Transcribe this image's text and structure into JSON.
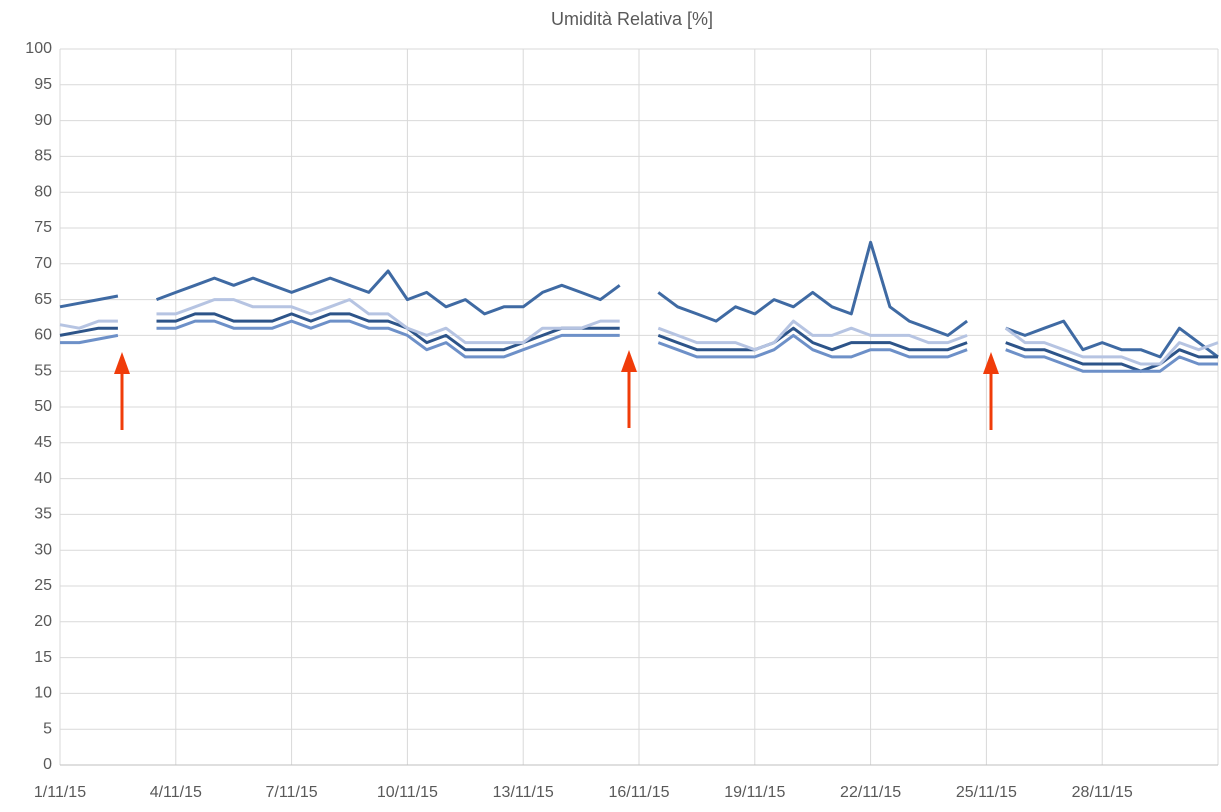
{
  "chart_data": {
    "type": "line",
    "title": "Umidità Relativa [%]",
    "x": [
      1,
      1.5,
      2,
      2.5,
      3,
      3.5,
      4,
      4.5,
      5,
      5.5,
      6,
      6.5,
      7,
      7.5,
      8,
      8.5,
      9,
      9.5,
      10,
      10.5,
      11,
      11.5,
      12,
      12.5,
      13,
      13.5,
      14,
      14.5,
      15,
      15.5,
      16,
      16.5,
      17,
      17.5,
      18,
      18.5,
      19,
      19.5,
      20,
      20.5,
      21,
      21.5,
      22,
      22.5,
      23,
      23.5,
      24,
      24.5,
      25,
      25.5,
      26,
      26.5,
      27,
      27.5,
      28,
      28.5,
      29,
      29.5,
      30,
      30.5,
      31
    ],
    "series": [
      {
        "color": "#3f6aa3",
        "values": [
          64,
          64.5,
          65,
          65.5,
          null,
          65,
          66,
          67,
          68,
          67,
          68,
          67,
          66,
          67,
          68,
          67,
          66,
          69,
          65,
          66,
          64,
          65,
          63,
          64,
          64,
          66,
          67,
          66,
          65,
          67,
          null,
          66,
          64,
          63,
          62,
          64,
          63,
          65,
          64,
          66,
          64,
          63,
          73,
          64,
          62,
          61,
          60,
          62,
          null,
          61,
          60,
          61,
          62,
          58,
          59,
          58,
          58,
          57,
          61,
          59,
          57
        ]
      },
      {
        "color": "#2d5489",
        "values": [
          60,
          60.5,
          61,
          61,
          null,
          62,
          62,
          63,
          63,
          62,
          62,
          62,
          63,
          62,
          63,
          63,
          62,
          62,
          61,
          59,
          60,
          58,
          58,
          58,
          59,
          60,
          61,
          61,
          61,
          61,
          null,
          60,
          59,
          58,
          58,
          58,
          58,
          59,
          61,
          59,
          58,
          59,
          59,
          59,
          58,
          58,
          58,
          59,
          null,
          59,
          58,
          58,
          57,
          56,
          56,
          56,
          55,
          56,
          58,
          57,
          57
        ]
      },
      {
        "color": "#6d90c8",
        "values": [
          59,
          59,
          59.5,
          60,
          null,
          61,
          61,
          62,
          62,
          61,
          61,
          61,
          62,
          61,
          62,
          62,
          61,
          61,
          60,
          58,
          59,
          57,
          57,
          57,
          58,
          59,
          60,
          60,
          60,
          60,
          null,
          59,
          58,
          57,
          57,
          57,
          57,
          58,
          60,
          58,
          57,
          57,
          58,
          58,
          57,
          57,
          57,
          58,
          null,
          58,
          57,
          57,
          56,
          55,
          55,
          55,
          55,
          55,
          57,
          56,
          56
        ]
      },
      {
        "color": "#b6c4e2",
        "values": [
          61.5,
          61,
          62,
          62,
          null,
          63,
          63,
          64,
          65,
          65,
          64,
          64,
          64,
          63,
          64,
          65,
          63,
          63,
          61,
          60,
          61,
          59,
          59,
          59,
          59,
          61,
          61,
          61,
          62,
          62,
          null,
          61,
          60,
          59,
          59,
          59,
          58,
          59,
          62,
          60,
          60,
          61,
          60,
          60,
          60,
          59,
          59,
          60,
          null,
          61,
          59,
          59,
          58,
          57,
          57,
          57,
          56,
          56,
          59,
          58,
          59
        ]
      }
    ],
    "xlim": [
      1,
      31
    ],
    "xticks": [
      {
        "value": 1,
        "label": "1/11/15"
      },
      {
        "value": 4,
        "label": "4/11/15"
      },
      {
        "value": 7,
        "label": "7/11/15"
      },
      {
        "value": 10,
        "label": "10/11/15"
      },
      {
        "value": 13,
        "label": "13/11/15"
      },
      {
        "value": 16,
        "label": "16/11/15"
      },
      {
        "value": 19,
        "label": "19/11/15"
      },
      {
        "value": 22,
        "label": "22/11/15"
      },
      {
        "value": 25,
        "label": "25/11/15"
      },
      {
        "value": 28,
        "label": "28/11/15"
      }
    ],
    "ylim": [
      0,
      100
    ],
    "yticks": [
      0,
      5,
      10,
      15,
      20,
      25,
      30,
      35,
      40,
      45,
      50,
      55,
      60,
      65,
      70,
      75,
      80,
      85,
      90,
      95,
      100
    ],
    "grid": true
  }
}
